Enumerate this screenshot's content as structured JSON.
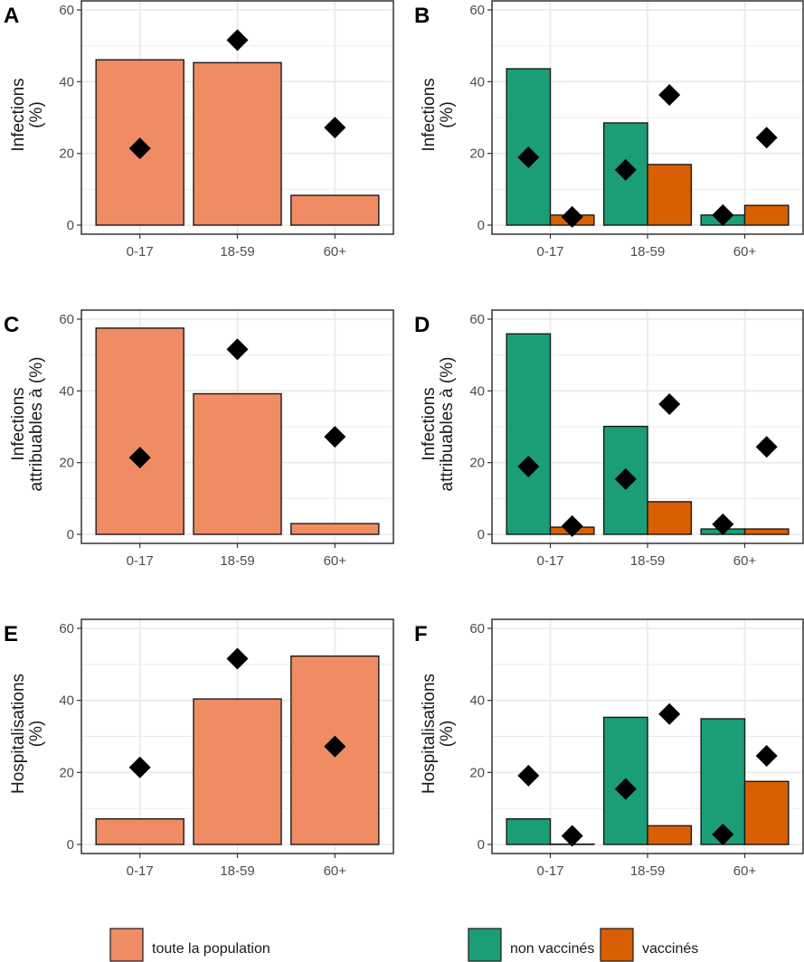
{
  "colors": {
    "population": "#f08c64",
    "non_vaccines": "#1b9e77",
    "vaccines": "#d95f02",
    "marker": "#000000",
    "grid": "#ebebeb",
    "frame": "#333333"
  },
  "legend": {
    "left": [
      {
        "key": "population",
        "label": "toute la population"
      }
    ],
    "right": [
      {
        "key": "non_vaccines",
        "label": "non vaccinés"
      },
      {
        "key": "vaccines",
        "label": "vaccinés"
      }
    ]
  },
  "chart_data": [
    {
      "tag": "A",
      "type": "bar",
      "ylabel": [
        "Infections",
        "(%)"
      ],
      "categories": [
        "0-17",
        "18-59",
        "60+"
      ],
      "ylim": [
        0,
        60
      ],
      "yticks": [
        0,
        20,
        40,
        60
      ],
      "grid": true,
      "series": [
        {
          "name": "toute la population",
          "key": "population",
          "values": [
            46.1,
            45.3,
            8.3
          ]
        }
      ],
      "markers": [
        [
          21.4
        ],
        [
          51.6
        ],
        [
          27.2
        ]
      ]
    },
    {
      "tag": "B",
      "type": "bar",
      "ylabel": [
        "Infections",
        "(%)"
      ],
      "categories": [
        "0-17",
        "18-59",
        "60+"
      ],
      "ylim": [
        0,
        60
      ],
      "yticks": [
        0,
        20,
        40,
        60
      ],
      "grid": true,
      "series": [
        {
          "name": "non vaccinés",
          "key": "non_vaccines",
          "values": [
            43.6,
            28.5,
            2.8
          ]
        },
        {
          "name": "vaccinés",
          "key": "vaccines",
          "values": [
            2.8,
            16.9,
            5.5
          ]
        }
      ],
      "markers": [
        [
          18.9,
          2.3
        ],
        [
          15.4,
          36.3
        ],
        [
          2.8,
          24.4
        ]
      ]
    },
    {
      "tag": "C",
      "type": "bar",
      "ylabel": [
        "Infections",
        "attribuables à (%)"
      ],
      "categories": [
        "0-17",
        "18-59",
        "60+"
      ],
      "ylim": [
        0,
        60
      ],
      "yticks": [
        0,
        20,
        40,
        60
      ],
      "grid": true,
      "series": [
        {
          "name": "toute la population",
          "key": "population",
          "values": [
            57.5,
            39.2,
            3.0
          ]
        }
      ],
      "markers": [
        [
          21.4
        ],
        [
          51.6
        ],
        [
          27.2
        ]
      ]
    },
    {
      "tag": "D",
      "type": "bar",
      "ylabel": [
        "Infections",
        "attribuables à (%)"
      ],
      "categories": [
        "0-17",
        "18-59",
        "60+"
      ],
      "ylim": [
        0,
        60
      ],
      "yticks": [
        0,
        20,
        40,
        60
      ],
      "grid": true,
      "series": [
        {
          "name": "non vaccinés",
          "key": "non_vaccines",
          "values": [
            55.9,
            30.1,
            1.5
          ]
        },
        {
          "name": "vaccinés",
          "key": "vaccines",
          "values": [
            2.0,
            9.1,
            1.5
          ]
        }
      ],
      "markers": [
        [
          18.9,
          2.3
        ],
        [
          15.4,
          36.3
        ],
        [
          2.8,
          24.4
        ]
      ]
    },
    {
      "tag": "E",
      "type": "bar",
      "ylabel": [
        "Hospitalisations",
        "(%)"
      ],
      "categories": [
        "0-17",
        "18-59",
        "60+"
      ],
      "ylim": [
        0,
        60
      ],
      "yticks": [
        0,
        20,
        40,
        60
      ],
      "grid": true,
      "series": [
        {
          "name": "toute la population",
          "key": "population",
          "values": [
            7.1,
            40.4,
            52.3
          ]
        }
      ],
      "markers": [
        [
          21.4
        ],
        [
          51.6
        ],
        [
          27.2
        ]
      ]
    },
    {
      "tag": "F",
      "type": "bar",
      "ylabel": [
        "Hospitalisations",
        "(%)"
      ],
      "categories": [
        "0-17",
        "18-59",
        "60+"
      ],
      "ylim": [
        0,
        60
      ],
      "yticks": [
        0,
        20,
        40,
        60
      ],
      "grid": true,
      "series": [
        {
          "name": "non vaccinés",
          "key": "non_vaccines",
          "values": [
            7.1,
            35.3,
            34.9
          ]
        },
        {
          "name": "vaccinés",
          "key": "vaccines",
          "values": [
            0.1,
            5.2,
            17.5
          ]
        }
      ],
      "markers": [
        [
          19.1,
          2.4
        ],
        [
          15.4,
          36.2
        ],
        [
          2.8,
          24.6
        ]
      ]
    }
  ]
}
